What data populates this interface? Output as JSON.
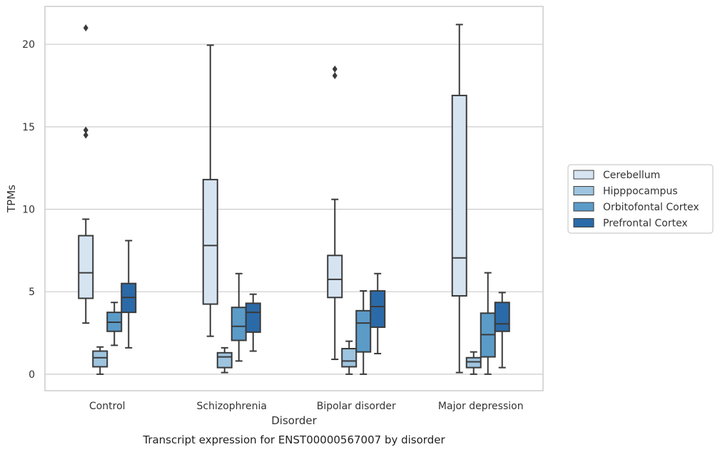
{
  "caption": "Transcript expression for ENST00000567007 by disorder",
  "chart_data": {
    "type": "box",
    "xlabel": "Disorder",
    "ylabel": "TPMs",
    "ylim": [
      -1,
      22.3
    ],
    "yticks": [
      0,
      5,
      10,
      15,
      20
    ],
    "grid": "horizontal",
    "legend_position": "right",
    "categories": [
      "Control",
      "Schizophrenia",
      "Bipolar disorder",
      "Major depression"
    ],
    "series": [
      {
        "name": "Cerebellum",
        "color": "#d6e4f2",
        "boxes": [
          {
            "whisker_low": 3.1,
            "q1": 4.6,
            "median": 6.15,
            "q3": 8.4,
            "whisker_high": 9.4,
            "outliers": [
              21.0,
              14.8,
              14.5
            ]
          },
          {
            "whisker_low": 2.3,
            "q1": 4.25,
            "median": 7.8,
            "q3": 11.8,
            "whisker_high": 19.95,
            "outliers": []
          },
          {
            "whisker_low": 0.9,
            "q1": 4.65,
            "median": 5.75,
            "q3": 7.2,
            "whisker_high": 10.6,
            "outliers": [
              18.5,
              18.1
            ]
          },
          {
            "whisker_low": 0.1,
            "q1": 4.75,
            "median": 7.05,
            "q3": 16.9,
            "whisker_high": 21.2,
            "outliers": []
          }
        ]
      },
      {
        "name": "Hipppocampus",
        "color": "#9ec4df",
        "boxes": [
          {
            "whisker_low": 0.0,
            "q1": 0.45,
            "median": 1.0,
            "q3": 1.4,
            "whisker_high": 1.65,
            "outliers": []
          },
          {
            "whisker_low": 0.1,
            "q1": 0.4,
            "median": 1.05,
            "q3": 1.3,
            "whisker_high": 1.6,
            "outliers": []
          },
          {
            "whisker_low": 0.0,
            "q1": 0.45,
            "median": 0.8,
            "q3": 1.55,
            "whisker_high": 2.0,
            "outliers": []
          },
          {
            "whisker_low": 0.0,
            "q1": 0.4,
            "median": 0.75,
            "q3": 1.0,
            "whisker_high": 1.35,
            "outliers": []
          }
        ]
      },
      {
        "name": "Orbitofontal Cortex",
        "color": "#5b9bc8",
        "boxes": [
          {
            "whisker_low": 1.75,
            "q1": 2.6,
            "median": 3.15,
            "q3": 3.75,
            "whisker_high": 4.35,
            "outliers": []
          },
          {
            "whisker_low": 0.8,
            "q1": 2.05,
            "median": 2.9,
            "q3": 4.05,
            "whisker_high": 6.1,
            "outliers": []
          },
          {
            "whisker_low": 0.0,
            "q1": 1.35,
            "median": 3.1,
            "q3": 3.85,
            "whisker_high": 5.05,
            "outliers": []
          },
          {
            "whisker_low": 0.0,
            "q1": 1.05,
            "median": 2.4,
            "q3": 3.7,
            "whisker_high": 6.15,
            "outliers": []
          }
        ]
      },
      {
        "name": "Prefrontal Cortex",
        "color": "#2b6aa8",
        "boxes": [
          {
            "whisker_low": 1.6,
            "q1": 3.75,
            "median": 4.65,
            "q3": 5.5,
            "whisker_high": 8.1,
            "outliers": []
          },
          {
            "whisker_low": 1.4,
            "q1": 2.55,
            "median": 3.75,
            "q3": 4.3,
            "whisker_high": 4.85,
            "outliers": []
          },
          {
            "whisker_low": 1.25,
            "q1": 2.85,
            "median": 4.1,
            "q3": 5.05,
            "whisker_high": 6.1,
            "outliers": []
          },
          {
            "whisker_low": 0.4,
            "q1": 2.6,
            "median": 3.05,
            "q3": 4.35,
            "whisker_high": 4.95,
            "outliers": []
          }
        ]
      }
    ]
  }
}
